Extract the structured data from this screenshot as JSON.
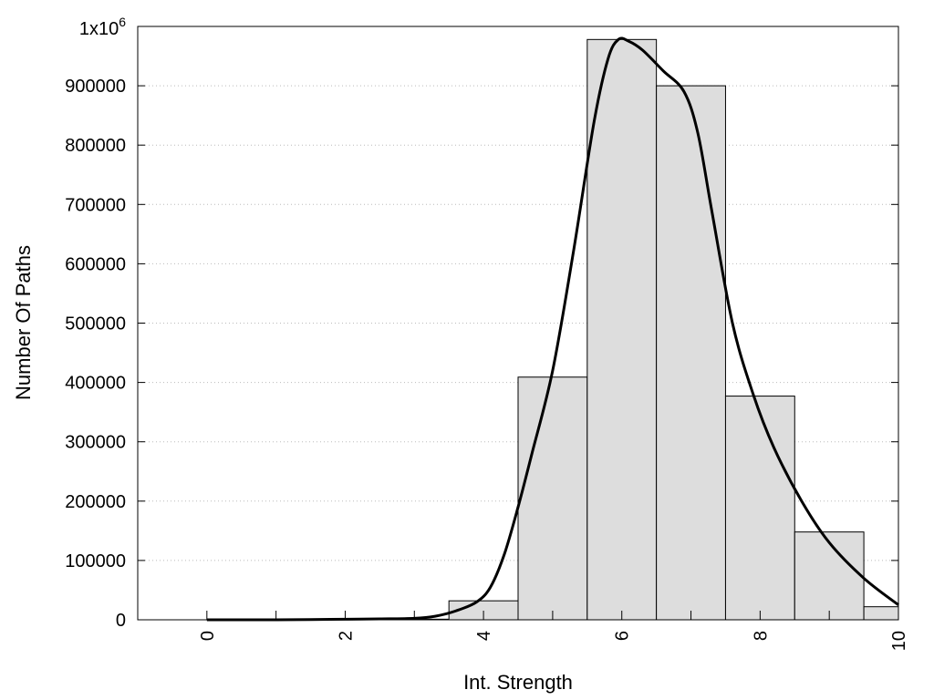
{
  "chart_data": {
    "type": "bar",
    "xlabel": "Int. Strength",
    "ylabel": "Number Of Paths",
    "xlim": [
      -1,
      10
    ],
    "ylim": [
      0,
      1000000
    ],
    "x_ticks": [
      0,
      2,
      4,
      6,
      8,
      10
    ],
    "x_tick_labels": [
      "0",
      "2",
      "4",
      "6",
      "8",
      "10"
    ],
    "y_ticks": [
      0,
      100000,
      200000,
      300000,
      400000,
      500000,
      600000,
      700000,
      800000,
      900000
    ],
    "y_tick_labels": [
      "0",
      "100000",
      "200000",
      "300000",
      "400000",
      "500000",
      "600000",
      "700000",
      "800000",
      "900000"
    ],
    "y_top_label": {
      "base": "1x10",
      "exp": "6"
    },
    "grid": "horizontal-dotted",
    "bar_color": "#dddddd",
    "curve_color": "#000000",
    "bars": {
      "x": [
        0,
        1,
        2,
        3,
        4,
        5,
        6,
        7,
        8,
        9,
        10
      ],
      "values": [
        0,
        0,
        500,
        1000,
        32000,
        409000,
        978000,
        900000,
        377000,
        148000,
        22000
      ]
    },
    "curve": {
      "x": [
        0,
        0.5,
        1,
        1.5,
        2,
        2.5,
        3,
        3.3,
        3.6,
        3.9,
        4.1,
        4.3,
        4.5,
        4.7,
        5.0,
        5.3,
        5.6,
        5.8,
        5.95,
        6.1,
        6.3,
        6.6,
        6.9,
        7.1,
        7.3,
        7.6,
        7.9,
        8.2,
        8.6,
        9.0,
        9.5,
        10.0
      ],
      "y": [
        0,
        0,
        0,
        300,
        1000,
        1500,
        2500,
        6000,
        15000,
        30000,
        55000,
        110000,
        190000,
        280000,
        420000,
        620000,
        840000,
        945000,
        978000,
        975000,
        960000,
        925000,
        890000,
        820000,
        690000,
        500000,
        380000,
        290000,
        200000,
        130000,
        70000,
        25000
      ]
    }
  }
}
